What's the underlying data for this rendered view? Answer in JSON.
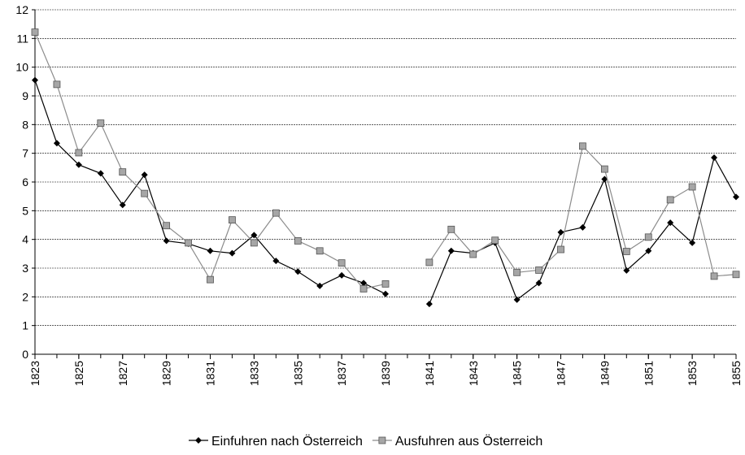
{
  "chart_data": {
    "type": "line",
    "x": [
      1823,
      1824,
      1825,
      1826,
      1827,
      1828,
      1829,
      1830,
      1831,
      1832,
      1833,
      1834,
      1835,
      1836,
      1837,
      1838,
      1839,
      1840,
      1841,
      1842,
      1843,
      1844,
      1845,
      1846,
      1847,
      1848,
      1849,
      1850,
      1851,
      1852,
      1853,
      1854,
      1855
    ],
    "xlim": [
      1823,
      1855
    ],
    "xticks": [
      1823,
      1825,
      1827,
      1829,
      1831,
      1833,
      1835,
      1837,
      1839,
      1841,
      1843,
      1845,
      1847,
      1849,
      1851,
      1853,
      1855
    ],
    "ylim": [
      0,
      12
    ],
    "yticks": [
      0,
      1,
      2,
      3,
      4,
      5,
      6,
      7,
      8,
      9,
      10,
      11,
      12
    ],
    "grid": true,
    "legend": "bottom",
    "series": [
      {
        "name": "Einfuhren nach Österreich",
        "color": "#000000",
        "marker": "diamond",
        "values": [
          9.55,
          7.35,
          6.6,
          6.3,
          5.2,
          6.25,
          3.95,
          3.85,
          3.6,
          3.52,
          4.15,
          3.25,
          2.88,
          2.38,
          2.75,
          2.48,
          2.1,
          null,
          1.75,
          3.6,
          3.52,
          3.88,
          1.9,
          2.48,
          4.25,
          4.42,
          6.1,
          2.92,
          3.6,
          4.58,
          3.88,
          6.85,
          5.48
        ]
      },
      {
        "name": "Ausfuhren aus Österreich",
        "color": "#8c8c8c",
        "marker": "square",
        "values": [
          11.22,
          9.4,
          7.02,
          8.05,
          6.35,
          5.6,
          4.48,
          3.88,
          2.6,
          4.68,
          3.88,
          4.92,
          3.95,
          3.6,
          3.18,
          2.28,
          2.45,
          null,
          3.2,
          4.35,
          3.48,
          3.97,
          2.85,
          2.93,
          3.65,
          7.25,
          6.45,
          3.58,
          4.08,
          5.38,
          5.83,
          2.72,
          2.78
        ]
      }
    ]
  }
}
